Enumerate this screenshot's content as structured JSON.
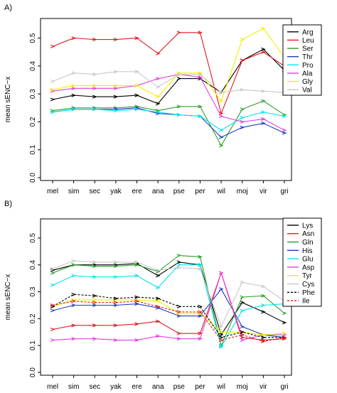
{
  "chart_data": [
    {
      "type": "line",
      "panel_label": "A)",
      "ylabel": "mean sENC−x",
      "xlabel": "",
      "categories": [
        "mel",
        "sim",
        "sec",
        "yak",
        "ere",
        "ana",
        "pse",
        "per",
        "wil",
        "moj",
        "vir",
        "gri"
      ],
      "ylim": [
        0.0,
        0.55
      ],
      "yticks": [
        "0.0",
        "0.1",
        "0.2",
        "0.3",
        "0.4",
        "0.5"
      ],
      "grid": false,
      "legend_position": "top-right",
      "series": [
        {
          "name": "Arg",
          "color": "#000000",
          "dash": false,
          "values": [
            0.28,
            0.295,
            0.29,
            0.29,
            0.295,
            0.265,
            0.355,
            0.355,
            0.305,
            0.42,
            0.46,
            0.385
          ]
        },
        {
          "name": "Leu",
          "color": "#e41a1c",
          "dash": false,
          "values": [
            0.47,
            0.5,
            0.495,
            0.495,
            0.5,
            0.445,
            0.52,
            0.52,
            0.23,
            0.42,
            0.45,
            0.4
          ]
        },
        {
          "name": "Ser",
          "color": "#2ca02c",
          "dash": false,
          "values": [
            0.24,
            0.25,
            0.25,
            0.25,
            0.255,
            0.24,
            0.255,
            0.255,
            0.115,
            0.245,
            0.275,
            0.225
          ]
        },
        {
          "name": "Thr",
          "color": "#1f3fbf",
          "dash": false,
          "values": [
            0.235,
            0.245,
            0.245,
            0.245,
            0.25,
            0.23,
            0.225,
            0.22,
            0.145,
            0.18,
            0.195,
            0.16
          ]
        },
        {
          "name": "Pro",
          "color": "#00e5ee",
          "dash": false,
          "values": [
            0.235,
            0.245,
            0.245,
            0.24,
            0.245,
            0.235,
            0.225,
            0.22,
            0.17,
            0.215,
            0.235,
            0.22
          ]
        },
        {
          "name": "Ala",
          "color": "#e040e0",
          "dash": false,
          "values": [
            0.31,
            0.32,
            0.32,
            0.32,
            0.33,
            0.355,
            0.37,
            0.36,
            0.22,
            0.2,
            0.21,
            0.17
          ]
        },
        {
          "name": "Gly",
          "color": "#f0f000",
          "dash": false,
          "values": [
            0.315,
            0.33,
            0.33,
            0.33,
            0.33,
            0.29,
            0.375,
            0.375,
            0.275,
            0.495,
            0.535,
            0.43
          ]
        },
        {
          "name": "Val",
          "color": "#c8c8c8",
          "dash": false,
          "values": [
            0.345,
            0.375,
            0.37,
            0.38,
            0.38,
            0.325,
            0.37,
            0.37,
            0.305,
            0.315,
            0.31,
            0.305
          ]
        }
      ]
    },
    {
      "type": "line",
      "panel_label": "B)",
      "ylabel": "mean sENC−x",
      "xlabel": "",
      "categories": [
        "mel",
        "sim",
        "sec",
        "yak",
        "ere",
        "ana",
        "pse",
        "per",
        "wil",
        "moj",
        "vir",
        "gri"
      ],
      "ylim": [
        0.0,
        0.55
      ],
      "yticks": [
        "0.0",
        "0.1",
        "0.2",
        "0.3",
        "0.4",
        "0.5"
      ],
      "grid": false,
      "legend_position": "top-right",
      "series": [
        {
          "name": "Lys",
          "color": "#000000",
          "dash": false,
          "values": [
            0.38,
            0.4,
            0.4,
            0.4,
            0.405,
            0.36,
            0.41,
            0.4,
            0.14,
            0.26,
            0.225,
            0.185
          ]
        },
        {
          "name": "Asn",
          "color": "#e41a1c",
          "dash": false,
          "values": [
            0.16,
            0.175,
            0.175,
            0.175,
            0.18,
            0.19,
            0.145,
            0.145,
            0.37,
            0.13,
            0.12,
            0.125
          ]
        },
        {
          "name": "Gln",
          "color": "#2ca02c",
          "dash": false,
          "values": [
            0.37,
            0.4,
            0.395,
            0.395,
            0.4,
            0.375,
            0.435,
            0.43,
            0.1,
            0.28,
            0.285,
            0.22
          ]
        },
        {
          "name": "His",
          "color": "#1f3fbf",
          "dash": false,
          "values": [
            0.23,
            0.25,
            0.25,
            0.25,
            0.255,
            0.24,
            0.21,
            0.21,
            0.31,
            0.17,
            0.14,
            0.13
          ]
        },
        {
          "name": "Glu",
          "color": "#00e5ee",
          "dash": false,
          "values": [
            0.325,
            0.36,
            0.355,
            0.355,
            0.36,
            0.315,
            0.4,
            0.4,
            0.095,
            0.23,
            0.25,
            0.255
          ]
        },
        {
          "name": "Asp",
          "color": "#e040e0",
          "dash": false,
          "values": [
            0.12,
            0.125,
            0.125,
            0.12,
            0.12,
            0.135,
            0.125,
            0.125,
            0.37,
            0.12,
            0.14,
            0.14
          ]
        },
        {
          "name": "Tyr",
          "color": "#f0f000",
          "dash": false,
          "values": [
            0.245,
            0.27,
            0.27,
            0.27,
            0.27,
            0.265,
            0.22,
            0.22,
            0.15,
            0.15,
            0.14,
            0.145
          ]
        },
        {
          "name": "Cys",
          "color": "#c8c8c8",
          "dash": false,
          "values": [
            0.385,
            0.415,
            0.41,
            0.41,
            0.41,
            0.38,
            0.39,
            0.385,
            0.17,
            0.335,
            0.32,
            0.265
          ]
        },
        {
          "name": "Phe",
          "color": "#000000",
          "dash": true,
          "values": [
            0.245,
            0.29,
            0.285,
            0.275,
            0.28,
            0.275,
            0.245,
            0.245,
            0.13,
            0.15,
            0.13,
            0.13
          ]
        },
        {
          "name": "Ile",
          "color": "#e41a1c",
          "dash": true,
          "values": [
            0.25,
            0.265,
            0.26,
            0.26,
            0.265,
            0.245,
            0.225,
            0.225,
            0.12,
            0.14,
            0.115,
            0.13
          ]
        }
      ]
    }
  ]
}
